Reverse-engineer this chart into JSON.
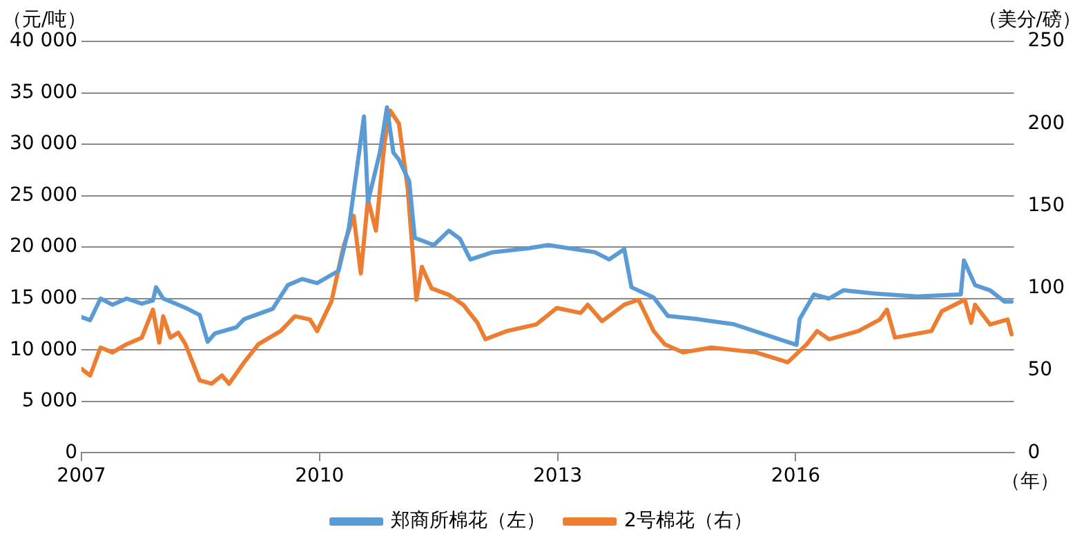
{
  "chart_data": {
    "type": "line",
    "xlabel": "（年）",
    "ylabel": "（元/吨）",
    "y2label": "（美分/磅）",
    "xlim": [
      2007,
      2018.75
    ],
    "xticks": [
      2007,
      2010,
      2013,
      2016
    ],
    "ylim": [
      0,
      40000
    ],
    "yticks": [
      {
        "value": 0,
        "label": "0"
      },
      {
        "value": 5000,
        "label": "5 000"
      },
      {
        "value": 10000,
        "label": "10 000"
      },
      {
        "value": 15000,
        "label": "15 000"
      },
      {
        "value": 20000,
        "label": "20 000"
      },
      {
        "value": 25000,
        "label": "25 000"
      },
      {
        "value": 30000,
        "label": "30 000"
      },
      {
        "value": 35000,
        "label": "35 000"
      },
      {
        "value": 40000,
        "label": "40 000"
      }
    ],
    "y2lim": [
      0,
      250
    ],
    "y2ticks": [
      0,
      50,
      100,
      150,
      200,
      250
    ],
    "grid": "y",
    "legend": "bottom",
    "marker": "none",
    "line_style": "solid",
    "series": [
      {
        "name": "郑商所棉花（左）",
        "color": "#5b9bd5",
        "x": [
          2007.0,
          2007.11,
          2007.24,
          2007.39,
          2007.57,
          2007.76,
          2007.9,
          2007.94,
          2008.03,
          2008.22,
          2008.31,
          2008.49,
          2008.59,
          2008.68,
          2008.95,
          2009.05,
          2009.41,
          2009.6,
          2009.78,
          2009.97,
          2010.24,
          2010.37,
          2010.56,
          2010.61,
          2010.76,
          2010.85,
          2010.93,
          2011.0,
          2011.13,
          2011.2,
          2011.44,
          2011.63,
          2011.77,
          2011.9,
          2012.18,
          2012.64,
          2012.88,
          2013.47,
          2013.65,
          2013.84,
          2013.93,
          2014.21,
          2014.39,
          2014.76,
          2015.22,
          2015.77,
          2016.01,
          2016.05,
          2016.23,
          2016.42,
          2016.6,
          2016.97,
          2017.53,
          2018.08,
          2018.12,
          2018.26,
          2018.45,
          2018.63,
          2018.72
        ],
        "values": [
          13200,
          12900,
          15000,
          14400,
          15000,
          14500,
          14800,
          16100,
          15000,
          14400,
          14100,
          13400,
          10800,
          11600,
          12200,
          13000,
          14000,
          16300,
          16900,
          16500,
          17700,
          21900,
          32700,
          24400,
          29200,
          33600,
          29200,
          28500,
          26400,
          20900,
          20200,
          21600,
          20800,
          18800,
          19500,
          19900,
          20200,
          19500,
          18800,
          19800,
          16100,
          15100,
          13300,
          13000,
          12500,
          11100,
          10500,
          13000,
          15400,
          15000,
          15800,
          15500,
          15200,
          15400,
          18700,
          16300,
          15800,
          14700,
          14700
        ]
      },
      {
        "name": "2号棉花（右）",
        "color": "#ed7d31",
        "axis": "y2",
        "x": [
          2007.0,
          2007.11,
          2007.24,
          2007.39,
          2007.57,
          2007.76,
          2007.9,
          2007.98,
          2008.03,
          2008.12,
          2008.22,
          2008.31,
          2008.49,
          2008.64,
          2008.77,
          2008.86,
          2009.05,
          2009.23,
          2009.51,
          2009.69,
          2009.88,
          2009.97,
          2010.15,
          2010.3,
          2010.43,
          2010.52,
          2010.61,
          2010.71,
          2010.82,
          2010.89,
          2011.0,
          2011.11,
          2011.22,
          2011.29,
          2011.41,
          2011.63,
          2011.81,
          2011.99,
          2012.09,
          2012.36,
          2012.73,
          2012.86,
          2012.99,
          2013.29,
          2013.38,
          2013.56,
          2013.84,
          2014.02,
          2014.21,
          2014.35,
          2014.58,
          2014.94,
          2015.5,
          2015.9,
          2016.14,
          2016.27,
          2016.42,
          2016.79,
          2017.06,
          2017.15,
          2017.25,
          2017.71,
          2017.84,
          2018.13,
          2018.21,
          2018.26,
          2018.45,
          2018.67,
          2018.72
        ],
        "values": [
          51,
          47,
          64,
          61,
          66,
          70,
          87,
          67,
          83,
          70,
          73,
          66,
          44,
          42,
          47,
          42,
          55,
          66,
          74,
          83,
          81,
          74,
          92,
          125,
          144,
          109,
          154,
          135,
          189,
          208,
          200,
          161,
          93,
          113,
          100,
          96,
          90,
          79,
          69,
          74,
          78,
          83,
          88,
          85,
          90,
          80,
          90,
          93,
          74,
          66,
          61,
          64,
          61,
          55,
          66,
          74,
          69,
          74,
          81,
          87,
          70,
          74,
          86,
          93,
          79,
          90,
          78,
          81,
          72
        ]
      }
    ]
  }
}
